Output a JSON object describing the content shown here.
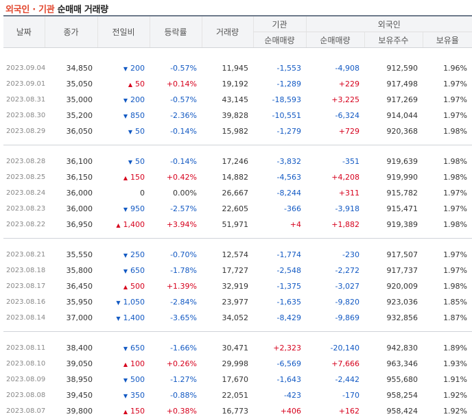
{
  "header": {
    "title_highlight": "외국인 · 기관",
    "title_rest": "순매매 거래량"
  },
  "columns": {
    "date": "날짜",
    "close": "종가",
    "change": "전일비",
    "rate": "등락률",
    "volume": "거래량",
    "inst_group": "기관",
    "foreign_group": "외국인",
    "inst_net": "순매매량",
    "foreign_net": "순매매량",
    "holdings": "보유주수",
    "ratio": "보유율"
  },
  "colors": {
    "up": "#d6001c",
    "down": "#1259c3",
    "accent": "#e2462d"
  },
  "rows": [
    {
      "date": "2023.09.04",
      "close": "34,850",
      "dir": "down",
      "change": "200",
      "rate": "-0.57%",
      "volume": "11,945",
      "inst": "-1,553",
      "foreign": "-4,908",
      "holdings": "912,590",
      "ratio": "1.96%"
    },
    {
      "date": "2023.09.01",
      "close": "35,050",
      "dir": "up",
      "change": "50",
      "rate": "+0.14%",
      "volume": "19,192",
      "inst": "-1,289",
      "foreign": "+229",
      "holdings": "917,498",
      "ratio": "1.97%"
    },
    {
      "date": "2023.08.31",
      "close": "35,000",
      "dir": "down",
      "change": "200",
      "rate": "-0.57%",
      "volume": "43,145",
      "inst": "-18,593",
      "foreign": "+3,225",
      "holdings": "917,269",
      "ratio": "1.97%"
    },
    {
      "date": "2023.08.30",
      "close": "35,200",
      "dir": "down",
      "change": "850",
      "rate": "-2.36%",
      "volume": "39,828",
      "inst": "-10,551",
      "foreign": "-6,324",
      "holdings": "914,044",
      "ratio": "1.97%"
    },
    {
      "date": "2023.08.29",
      "close": "36,050",
      "dir": "down",
      "change": "50",
      "rate": "-0.14%",
      "volume": "15,982",
      "inst": "-1,279",
      "foreign": "+729",
      "holdings": "920,368",
      "ratio": "1.98%"
    },
    {
      "date": "2023.08.28",
      "close": "36,100",
      "dir": "down",
      "change": "50",
      "rate": "-0.14%",
      "volume": "17,246",
      "inst": "-3,832",
      "foreign": "-351",
      "holdings": "919,639",
      "ratio": "1.98%"
    },
    {
      "date": "2023.08.25",
      "close": "36,150",
      "dir": "up",
      "change": "150",
      "rate": "+0.42%",
      "volume": "14,882",
      "inst": "-4,563",
      "foreign": "+4,208",
      "holdings": "919,990",
      "ratio": "1.98%"
    },
    {
      "date": "2023.08.24",
      "close": "36,000",
      "dir": "flat",
      "change": "0",
      "rate": "0.00%",
      "volume": "26,667",
      "inst": "-8,244",
      "foreign": "+311",
      "holdings": "915,782",
      "ratio": "1.97%"
    },
    {
      "date": "2023.08.23",
      "close": "36,000",
      "dir": "down",
      "change": "950",
      "rate": "-2.57%",
      "volume": "22,605",
      "inst": "-366",
      "foreign": "-3,918",
      "holdings": "915,471",
      "ratio": "1.97%"
    },
    {
      "date": "2023.08.22",
      "close": "36,950",
      "dir": "up",
      "change": "1,400",
      "rate": "+3.94%",
      "volume": "51,971",
      "inst": "+4",
      "foreign": "+1,882",
      "holdings": "919,389",
      "ratio": "1.98%"
    },
    {
      "date": "2023.08.21",
      "close": "35,550",
      "dir": "down",
      "change": "250",
      "rate": "-0.70%",
      "volume": "12,574",
      "inst": "-1,774",
      "foreign": "-230",
      "holdings": "917,507",
      "ratio": "1.97%"
    },
    {
      "date": "2023.08.18",
      "close": "35,800",
      "dir": "down",
      "change": "650",
      "rate": "-1.78%",
      "volume": "17,727",
      "inst": "-2,548",
      "foreign": "-2,272",
      "holdings": "917,737",
      "ratio": "1.97%"
    },
    {
      "date": "2023.08.17",
      "close": "36,450",
      "dir": "up",
      "change": "500",
      "rate": "+1.39%",
      "volume": "32,919",
      "inst": "-1,375",
      "foreign": "-3,027",
      "holdings": "920,009",
      "ratio": "1.98%"
    },
    {
      "date": "2023.08.16",
      "close": "35,950",
      "dir": "down",
      "change": "1,050",
      "rate": "-2.84%",
      "volume": "23,977",
      "inst": "-1,635",
      "foreign": "-9,820",
      "holdings": "923,036",
      "ratio": "1.85%"
    },
    {
      "date": "2023.08.14",
      "close": "37,000",
      "dir": "down",
      "change": "1,400",
      "rate": "-3.65%",
      "volume": "34,052",
      "inst": "-8,429",
      "foreign": "-9,869",
      "holdings": "932,856",
      "ratio": "1.87%"
    },
    {
      "date": "2023.08.11",
      "close": "38,400",
      "dir": "down",
      "change": "650",
      "rate": "-1.66%",
      "volume": "30,471",
      "inst": "+2,323",
      "foreign": "-20,140",
      "holdings": "942,830",
      "ratio": "1.89%"
    },
    {
      "date": "2023.08.10",
      "close": "39,050",
      "dir": "up",
      "change": "100",
      "rate": "+0.26%",
      "volume": "29,998",
      "inst": "-6,569",
      "foreign": "+7,666",
      "holdings": "963,346",
      "ratio": "1.93%"
    },
    {
      "date": "2023.08.09",
      "close": "38,950",
      "dir": "down",
      "change": "500",
      "rate": "-1.27%",
      "volume": "17,670",
      "inst": "-1,643",
      "foreign": "-2,442",
      "holdings": "955,680",
      "ratio": "1.91%"
    },
    {
      "date": "2023.08.08",
      "close": "39,450",
      "dir": "down",
      "change": "350",
      "rate": "-0.88%",
      "volume": "22,051",
      "inst": "-423",
      "foreign": "-170",
      "holdings": "958,254",
      "ratio": "1.92%"
    },
    {
      "date": "2023.08.07",
      "close": "39,800",
      "dir": "up",
      "change": "150",
      "rate": "+0.38%",
      "volume": "16,773",
      "inst": "+406",
      "foreign": "+162",
      "holdings": "958,424",
      "ratio": "1.92%"
    }
  ]
}
